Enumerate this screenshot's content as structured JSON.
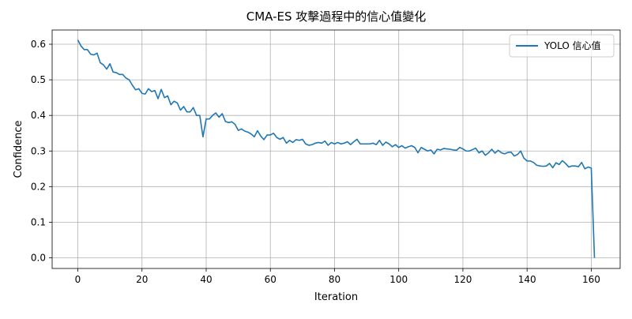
{
  "chart_data": {
    "type": "line",
    "title": "CMA-ES 攻擊過程中的信心值變化",
    "xlabel": "Iteration",
    "ylabel": "Confidence",
    "xlim": [
      -8,
      169
    ],
    "ylim": [
      -0.03,
      0.64
    ],
    "xticks": [
      0,
      20,
      40,
      60,
      80,
      100,
      120,
      140,
      160
    ],
    "yticks": [
      0.0,
      0.1,
      0.2,
      0.3,
      0.4,
      0.5,
      0.6
    ],
    "xtick_labels": [
      "0",
      "20",
      "40",
      "60",
      "80",
      "100",
      "120",
      "140",
      "160"
    ],
    "ytick_labels": [
      "0.0",
      "0.1",
      "0.2",
      "0.3",
      "0.4",
      "0.5",
      "0.6"
    ],
    "grid": true,
    "legend_position": "top-right",
    "series": [
      {
        "name": "YOLO 信心值",
        "color": "#1f77b4",
        "x": [
          0,
          1,
          2,
          3,
          4,
          5,
          6,
          7,
          8,
          9,
          10,
          11,
          12,
          13,
          14,
          15,
          16,
          17,
          18,
          19,
          20,
          21,
          22,
          23,
          24,
          25,
          26,
          27,
          28,
          29,
          30,
          31,
          32,
          33,
          34,
          35,
          36,
          37,
          38,
          39,
          40,
          41,
          42,
          43,
          44,
          45,
          46,
          47,
          48,
          49,
          50,
          51,
          52,
          53,
          54,
          55,
          56,
          57,
          58,
          59,
          60,
          61,
          62,
          63,
          64,
          65,
          66,
          67,
          68,
          69,
          70,
          71,
          72,
          73,
          74,
          75,
          76,
          77,
          78,
          79,
          80,
          81,
          82,
          83,
          84,
          85,
          86,
          87,
          88,
          89,
          90,
          91,
          92,
          93,
          94,
          95,
          96,
          97,
          98,
          99,
          100,
          101,
          102,
          103,
          104,
          105,
          106,
          107,
          108,
          109,
          110,
          111,
          112,
          113,
          114,
          115,
          116,
          117,
          118,
          119,
          120,
          121,
          122,
          123,
          124,
          125,
          126,
          127,
          128,
          129,
          130,
          131,
          132,
          133,
          134,
          135,
          136,
          137,
          138,
          139,
          140,
          141,
          142,
          143,
          144,
          145,
          146,
          147,
          148,
          149,
          150,
          151,
          152,
          153,
          154,
          155,
          156,
          157,
          158,
          159,
          160,
          161
        ],
        "y": [
          0.612,
          0.595,
          0.585,
          0.585,
          0.572,
          0.57,
          0.575,
          0.548,
          0.542,
          0.53,
          0.545,
          0.522,
          0.52,
          0.515,
          0.515,
          0.505,
          0.5,
          0.485,
          0.472,
          0.475,
          0.462,
          0.46,
          0.475,
          0.467,
          0.47,
          0.447,
          0.473,
          0.45,
          0.455,
          0.43,
          0.44,
          0.435,
          0.415,
          0.425,
          0.41,
          0.41,
          0.422,
          0.4,
          0.4,
          0.34,
          0.39,
          0.39,
          0.4,
          0.407,
          0.395,
          0.405,
          0.383,
          0.38,
          0.382,
          0.375,
          0.358,
          0.362,
          0.356,
          0.353,
          0.348,
          0.34,
          0.357,
          0.342,
          0.332,
          0.345,
          0.345,
          0.35,
          0.338,
          0.333,
          0.338,
          0.322,
          0.33,
          0.324,
          0.332,
          0.33,
          0.333,
          0.32,
          0.316,
          0.318,
          0.322,
          0.324,
          0.322,
          0.328,
          0.316,
          0.324,
          0.32,
          0.324,
          0.32,
          0.322,
          0.326,
          0.318,
          0.326,
          0.333,
          0.32,
          0.32,
          0.32,
          0.32,
          0.322,
          0.318,
          0.33,
          0.316,
          0.325,
          0.32,
          0.312,
          0.318,
          0.31,
          0.315,
          0.308,
          0.312,
          0.315,
          0.31,
          0.295,
          0.31,
          0.305,
          0.3,
          0.303,
          0.292,
          0.305,
          0.303,
          0.307,
          0.306,
          0.305,
          0.303,
          0.302,
          0.31,
          0.306,
          0.3,
          0.3,
          0.304,
          0.308,
          0.295,
          0.3,
          0.288,
          0.295,
          0.305,
          0.294,
          0.302,
          0.295,
          0.292,
          0.296,
          0.297,
          0.286,
          0.29,
          0.3,
          0.28,
          0.272,
          0.272,
          0.268,
          0.26,
          0.258,
          0.257,
          0.258,
          0.265,
          0.253,
          0.267,
          0.262,
          0.273,
          0.265,
          0.255,
          0.258,
          0.258,
          0.256,
          0.268,
          0.25,
          0.255,
          0.252,
          0.0
        ]
      }
    ]
  }
}
